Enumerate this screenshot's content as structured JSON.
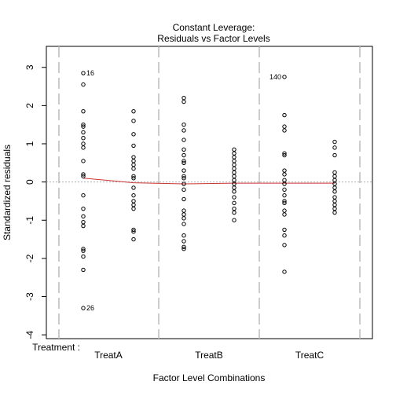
{
  "chart_data": {
    "type": "scatter",
    "title": "Constant Leverage:",
    "subtitle": "Residuals vs Factor Levels",
    "xlabel": "Factor Level Combinations",
    "ylabel": "Standardized residuals",
    "factor_label": "Treatment :",
    "categories": [
      "TreatA",
      "TreatB",
      "TreatC"
    ],
    "ylim": [
      -4.1,
      3.55
    ],
    "yticks": [
      -4,
      -3,
      -2,
      -1,
      0,
      1,
      2,
      3
    ],
    "ytick_labels": [
      "-4",
      "-3",
      "-2",
      "-1",
      "0",
      "1",
      "2",
      "3"
    ],
    "points": [
      {
        "x": 1,
        "y": 2.85
      },
      {
        "x": 1,
        "y": 2.55
      },
      {
        "x": 1,
        "y": 1.85
      },
      {
        "x": 1,
        "y": 1.5
      },
      {
        "x": 1,
        "y": 1.45
      },
      {
        "x": 1,
        "y": 1.3
      },
      {
        "x": 1,
        "y": 1.15
      },
      {
        "x": 1,
        "y": 1.0
      },
      {
        "x": 1,
        "y": 0.9
      },
      {
        "x": 1,
        "y": 0.55
      },
      {
        "x": 1,
        "y": 0.2
      },
      {
        "x": 1,
        "y": 0.15
      },
      {
        "x": 1,
        "y": -0.35
      },
      {
        "x": 1,
        "y": -0.7
      },
      {
        "x": 1,
        "y": -0.9
      },
      {
        "x": 1,
        "y": -1.05
      },
      {
        "x": 1,
        "y": -1.15
      },
      {
        "x": 1,
        "y": -1.75
      },
      {
        "x": 1,
        "y": -1.8
      },
      {
        "x": 1,
        "y": -1.95
      },
      {
        "x": 1,
        "y": -2.3
      },
      {
        "x": 1,
        "y": -3.3
      },
      {
        "x": 2,
        "y": 1.85
      },
      {
        "x": 2,
        "y": 1.6
      },
      {
        "x": 2,
        "y": 1.25
      },
      {
        "x": 2,
        "y": 0.95
      },
      {
        "x": 2,
        "y": 0.65
      },
      {
        "x": 2,
        "y": 0.55
      },
      {
        "x": 2,
        "y": 0.45
      },
      {
        "x": 2,
        "y": 0.35
      },
      {
        "x": 2,
        "y": 0.15
      },
      {
        "x": 2,
        "y": 0.1
      },
      {
        "x": 2,
        "y": -0.15
      },
      {
        "x": 2,
        "y": -0.35
      },
      {
        "x": 2,
        "y": -0.5
      },
      {
        "x": 2,
        "y": -0.6
      },
      {
        "x": 2,
        "y": -0.7
      },
      {
        "x": 2,
        "y": -1.25
      },
      {
        "x": 2,
        "y": -1.3
      },
      {
        "x": 2,
        "y": -1.5
      },
      {
        "x": 3,
        "y": 2.2
      },
      {
        "x": 3,
        "y": 2.1
      },
      {
        "x": 3,
        "y": 1.5
      },
      {
        "x": 3,
        "y": 1.35
      },
      {
        "x": 3,
        "y": 1.1
      },
      {
        "x": 3,
        "y": 0.85
      },
      {
        "x": 3,
        "y": 0.7
      },
      {
        "x": 3,
        "y": 0.55
      },
      {
        "x": 3,
        "y": 0.5
      },
      {
        "x": 3,
        "y": 0.3
      },
      {
        "x": 3,
        "y": 0.15
      },
      {
        "x": 3,
        "y": 0.1
      },
      {
        "x": 3,
        "y": -0.05
      },
      {
        "x": 3,
        "y": -0.2
      },
      {
        "x": 3,
        "y": -0.45
      },
      {
        "x": 3,
        "y": -0.75
      },
      {
        "x": 3,
        "y": -0.85
      },
      {
        "x": 3,
        "y": -0.95
      },
      {
        "x": 3,
        "y": -1.1
      },
      {
        "x": 3,
        "y": -1.4
      },
      {
        "x": 3,
        "y": -1.55
      },
      {
        "x": 3,
        "y": -1.7
      },
      {
        "x": 3,
        "y": -1.75
      },
      {
        "x": 4,
        "y": 0.85
      },
      {
        "x": 4,
        "y": 0.75
      },
      {
        "x": 4,
        "y": 0.65
      },
      {
        "x": 4,
        "y": 0.55
      },
      {
        "x": 4,
        "y": 0.45
      },
      {
        "x": 4,
        "y": 0.35
      },
      {
        "x": 4,
        "y": 0.25
      },
      {
        "x": 4,
        "y": 0.15
      },
      {
        "x": 4,
        "y": 0.05
      },
      {
        "x": 4,
        "y": -0.05
      },
      {
        "x": 4,
        "y": -0.15
      },
      {
        "x": 4,
        "y": -0.25
      },
      {
        "x": 4,
        "y": -0.4
      },
      {
        "x": 4,
        "y": -0.55
      },
      {
        "x": 4,
        "y": -0.7
      },
      {
        "x": 4,
        "y": -0.8
      },
      {
        "x": 4,
        "y": -1.0
      },
      {
        "x": 5,
        "y": 2.75
      },
      {
        "x": 5,
        "y": 1.75
      },
      {
        "x": 5,
        "y": 1.45
      },
      {
        "x": 5,
        "y": 1.35
      },
      {
        "x": 5,
        "y": 0.75
      },
      {
        "x": 5,
        "y": 0.7
      },
      {
        "x": 5,
        "y": 0.3
      },
      {
        "x": 5,
        "y": 0.2
      },
      {
        "x": 5,
        "y": 0.05
      },
      {
        "x": 5,
        "y": -0.05
      },
      {
        "x": 5,
        "y": -0.2
      },
      {
        "x": 5,
        "y": -0.35
      },
      {
        "x": 5,
        "y": -0.5
      },
      {
        "x": 5,
        "y": -0.55
      },
      {
        "x": 5,
        "y": -0.75
      },
      {
        "x": 5,
        "y": -0.85
      },
      {
        "x": 5,
        "y": -1.25
      },
      {
        "x": 5,
        "y": -1.4
      },
      {
        "x": 5,
        "y": -1.65
      },
      {
        "x": 5,
        "y": -2.35
      },
      {
        "x": 6,
        "y": 1.05
      },
      {
        "x": 6,
        "y": 0.9
      },
      {
        "x": 6,
        "y": 0.7
      },
      {
        "x": 6,
        "y": 0.25
      },
      {
        "x": 6,
        "y": 0.15
      },
      {
        "x": 6,
        "y": 0.05
      },
      {
        "x": 6,
        "y": -0.05
      },
      {
        "x": 6,
        "y": -0.15
      },
      {
        "x": 6,
        "y": -0.25
      },
      {
        "x": 6,
        "y": -0.4
      },
      {
        "x": 6,
        "y": -0.5
      },
      {
        "x": 6,
        "y": -0.6
      },
      {
        "x": 6,
        "y": -0.7
      },
      {
        "x": 6,
        "y": -0.8
      }
    ],
    "point_labels": [
      {
        "text": "16",
        "x": 1,
        "y": 2.85
      },
      {
        "text": "26",
        "x": 1,
        "y": -3.3
      },
      {
        "text": "140",
        "x": 5,
        "y": 2.75
      }
    ],
    "smooth_line": {
      "x": [
        1,
        2,
        3,
        4,
        5,
        6
      ],
      "y": [
        0.1,
        -0.02,
        -0.05,
        -0.03,
        -0.03,
        -0.03
      ]
    },
    "colors": {
      "points": "#000000",
      "smooth": "#cc3333",
      "refline": "#aaaaaa",
      "separator": "#bbbbbb"
    }
  }
}
